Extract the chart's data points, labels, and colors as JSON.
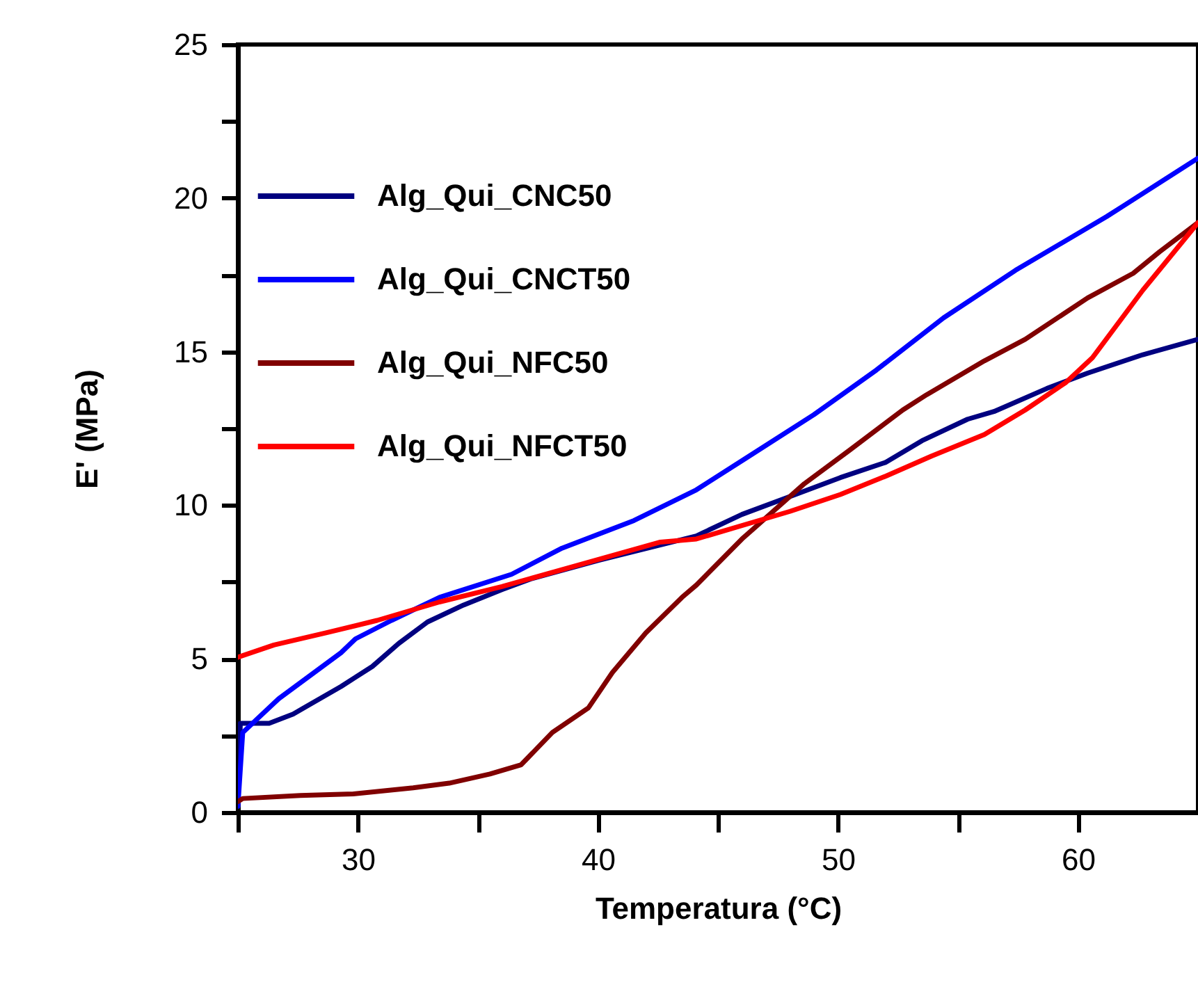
{
  "chart_data": {
    "type": "line",
    "xlabel": "Temperatura (°C)",
    "ylabel": "E' (MPa)",
    "xlim": [
      25,
      65
    ],
    "ylim": [
      0,
      25
    ],
    "xticks": [
      {
        "value": 25,
        "label": null
      },
      30,
      {
        "value": 35,
        "label": null
      },
      40,
      {
        "value": 45,
        "label": null
      },
      50,
      {
        "value": 55,
        "label": null
      },
      60
    ],
    "yticks": [
      0,
      {
        "value": 2.5,
        "label": null
      },
      5,
      {
        "value": 7.5,
        "label": null
      },
      10,
      {
        "value": 12.5,
        "label": null
      },
      15,
      {
        "value": 17.5,
        "label": null
      },
      20,
      {
        "value": 22.5,
        "label": null
      },
      25
    ],
    "grid": false,
    "legend": "top left",
    "line_style": "solid",
    "marker": "none",
    "series": [
      {
        "name": "Alg_Qui_CNC50",
        "color": "#000080",
        "x": [
          25,
          25.1,
          26.3,
          27.3,
          29.3,
          30.6,
          31.7,
          32.9,
          34.4,
          36,
          37.2,
          40,
          44.1,
          46,
          48.4,
          50.1,
          52,
          53.5,
          55.4,
          56.5,
          58.7,
          60.4,
          62.7,
          65
        ],
        "values": [
          0.2,
          2.9,
          2.9,
          3.2,
          4.1,
          4.75,
          5.5,
          6.2,
          6.75,
          7.25,
          7.6,
          8.2,
          9.0,
          9.7,
          10.4,
          10.9,
          11.4,
          12.1,
          12.8,
          13.05,
          13.8,
          14.3,
          14.9,
          15.4
        ]
      },
      {
        "name": "Alg_Qui_CNCT50",
        "color": "#0000ff",
        "x": [
          25,
          25.2,
          26.7,
          29.3,
          29.9,
          31.4,
          33.4,
          36.4,
          38.5,
          41.5,
          44.1,
          46.2,
          49,
          51.6,
          54.4,
          57.4,
          61.2,
          61.9,
          65
        ],
        "values": [
          0.2,
          2.6,
          3.7,
          5.2,
          5.65,
          6.25,
          7.0,
          7.75,
          8.6,
          9.5,
          10.5,
          11.55,
          12.95,
          14.4,
          16.1,
          17.65,
          19.4,
          19.75,
          21.3
        ]
      },
      {
        "name": "Alg_Qui_NFC50",
        "color": "#800000",
        "x": [
          25,
          25.2,
          27.6,
          29.8,
          32.3,
          33.8,
          35.5,
          36.8,
          38.1,
          39.6,
          40.6,
          42,
          43.5,
          44.1,
          46,
          48.6,
          50.5,
          52.7,
          53.7,
          56.1,
          57.8,
          60.4,
          62.3,
          63.4,
          65
        ],
        "values": [
          0.35,
          0.45,
          0.55,
          0.6,
          0.8,
          0.95,
          1.25,
          1.55,
          2.6,
          3.4,
          4.55,
          5.85,
          7.0,
          7.4,
          8.9,
          10.7,
          11.8,
          13.1,
          13.6,
          14.7,
          15.4,
          16.75,
          17.55,
          18.25,
          19.2
        ]
      },
      {
        "name": "Alg_Qui_NFCT50",
        "color": "#ff0000",
        "x": [
          25,
          26.5,
          28.7,
          30.8,
          33.4,
          36,
          39.4,
          42.6,
          44.1,
          48,
          50.1,
          52,
          53.9,
          56.1,
          57.8,
          59.5,
          60.6,
          62.7,
          65
        ],
        "values": [
          5.05,
          5.45,
          5.85,
          6.25,
          6.85,
          7.35,
          8.1,
          8.8,
          8.9,
          9.8,
          10.35,
          10.95,
          11.6,
          12.3,
          13.1,
          14.0,
          14.8,
          17.0,
          19.2
        ]
      }
    ]
  }
}
